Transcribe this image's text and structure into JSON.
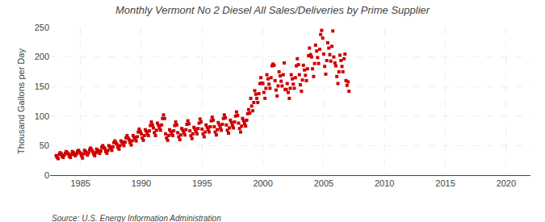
{
  "chart_data": {
    "type": "scatter",
    "title": "Monthly Vermont No 2 Diesel All Sales/Deliveries by Prime Supplier",
    "ylabel": "Thousand Gallons per Day",
    "annotations": [
      "Source: U.S. Energy Information Administration"
    ],
    "color": "#cc0000",
    "marker": "square",
    "grid": true,
    "xlim": [
      1982.5,
      2022
    ],
    "ylim": [
      0,
      250
    ],
    "xticks": [
      1985,
      1990,
      1995,
      2000,
      2005,
      2010,
      2015,
      2020
    ],
    "yticks": [
      0,
      50,
      100,
      150,
      200,
      250
    ],
    "x": [
      1983.0,
      1983.08,
      1983.17,
      1983.25,
      1983.33,
      1983.42,
      1983.5,
      1983.58,
      1983.67,
      1983.75,
      1983.83,
      1983.92,
      1984.0,
      1984.08,
      1984.17,
      1984.25,
      1984.33,
      1984.42,
      1984.5,
      1984.58,
      1984.67,
      1984.75,
      1984.83,
      1984.92,
      1985.0,
      1985.08,
      1985.17,
      1985.25,
      1985.33,
      1985.42,
      1985.5,
      1985.58,
      1985.67,
      1985.75,
      1985.83,
      1985.92,
      1986.0,
      1986.08,
      1986.17,
      1986.25,
      1986.33,
      1986.42,
      1986.5,
      1986.58,
      1986.67,
      1986.75,
      1986.83,
      1986.92,
      1987.0,
      1987.08,
      1987.17,
      1987.25,
      1987.33,
      1987.42,
      1987.5,
      1987.58,
      1987.67,
      1987.75,
      1987.83,
      1987.92,
      1988.0,
      1988.08,
      1988.17,
      1988.25,
      1988.33,
      1988.42,
      1988.5,
      1988.58,
      1988.67,
      1988.75,
      1988.83,
      1988.92,
      1989.0,
      1989.08,
      1989.17,
      1989.25,
      1989.33,
      1989.42,
      1989.5,
      1989.58,
      1989.67,
      1989.75,
      1989.83,
      1989.92,
      1990.0,
      1990.08,
      1990.17,
      1990.25,
      1990.33,
      1990.42,
      1990.5,
      1990.58,
      1990.67,
      1990.75,
      1990.83,
      1990.92,
      1991.0,
      1991.08,
      1991.17,
      1991.25,
      1991.33,
      1991.42,
      1991.5,
      1991.58,
      1991.67,
      1991.75,
      1991.83,
      1991.92,
      1992.0,
      1992.08,
      1992.17,
      1992.25,
      1992.33,
      1992.42,
      1992.5,
      1992.58,
      1992.67,
      1992.75,
      1992.83,
      1992.92,
      1993.0,
      1993.08,
      1993.17,
      1993.25,
      1993.33,
      1993.42,
      1993.5,
      1993.58,
      1993.67,
      1993.75,
      1993.83,
      1993.92,
      1994.0,
      1994.08,
      1994.17,
      1994.25,
      1994.33,
      1994.42,
      1994.5,
      1994.58,
      1994.67,
      1994.75,
      1994.83,
      1994.92,
      1995.0,
      1995.08,
      1995.17,
      1995.25,
      1995.33,
      1995.42,
      1995.5,
      1995.58,
      1995.67,
      1995.75,
      1995.83,
      1995.92,
      1996.0,
      1996.08,
      1996.17,
      1996.25,
      1996.33,
      1996.42,
      1996.5,
      1996.58,
      1996.67,
      1996.75,
      1996.83,
      1996.92,
      1997.0,
      1997.08,
      1997.17,
      1997.25,
      1997.33,
      1997.42,
      1997.5,
      1997.58,
      1997.67,
      1997.75,
      1997.83,
      1997.92,
      1998.0,
      1998.08,
      1998.17,
      1998.25,
      1998.33,
      1998.42,
      1998.5,
      1998.58,
      1998.67,
      1998.75,
      1998.83,
      1998.92,
      1999.0,
      1999.08,
      1999.17,
      1999.25,
      1999.33,
      1999.42,
      1999.5,
      1999.58,
      1999.67,
      1999.75,
      1999.83,
      1999.92,
      2000.0,
      2000.08,
      2000.17,
      2000.25,
      2000.33,
      2000.42,
      2000.5,
      2000.58,
      2000.67,
      2000.75,
      2000.83,
      2000.92,
      2001.0,
      2001.08,
      2001.17,
      2001.25,
      2001.33,
      2001.42,
      2001.5,
      2001.58,
      2001.67,
      2001.75,
      2001.83,
      2001.92,
      2002.0,
      2002.08,
      2002.17,
      2002.25,
      2002.33,
      2002.42,
      2002.5,
      2002.58,
      2002.67,
      2002.75,
      2002.83,
      2002.92,
      2003.0,
      2003.08,
      2003.17,
      2003.25,
      2003.33,
      2003.42,
      2003.5,
      2003.58,
      2003.67,
      2003.75,
      2003.83,
      2003.92,
      2004.0,
      2004.08,
      2004.17,
      2004.25,
      2004.33,
      2004.42,
      2004.5,
      2004.58,
      2004.67,
      2004.75,
      2004.83,
      2004.92,
      2005.0,
      2005.08,
      2005.17,
      2005.25,
      2005.33,
      2005.42,
      2005.5,
      2005.58,
      2005.67,
      2005.75,
      2005.83,
      2005.92,
      2006.0,
      2006.08,
      2006.17,
      2006.25,
      2006.33,
      2006.42,
      2006.5,
      2006.58,
      2006.67,
      2006.75,
      2006.83,
      2006.92,
      2007.0,
      2007.08
    ],
    "values": [
      33,
      30,
      28,
      35,
      38,
      36,
      32,
      30,
      34,
      37,
      40,
      38,
      36,
      32,
      30,
      35,
      40,
      38,
      35,
      33,
      36,
      40,
      42,
      39,
      37,
      33,
      29,
      36,
      42,
      40,
      37,
      34,
      38,
      43,
      46,
      43,
      40,
      36,
      33,
      38,
      44,
      42,
      39,
      37,
      41,
      47,
      50,
      47,
      45,
      40,
      37,
      42,
      50,
      48,
      45,
      42,
      48,
      55,
      58,
      55,
      52,
      47,
      44,
      50,
      58,
      56,
      53,
      50,
      56,
      63,
      67,
      63,
      60,
      55,
      51,
      58,
      67,
      64,
      61,
      58,
      65,
      73,
      78,
      74,
      70,
      63,
      59,
      67,
      77,
      74,
      70,
      67,
      75,
      84,
      90,
      85,
      80,
      72,
      67,
      76,
      88,
      84,
      80,
      76,
      85,
      96,
      102,
      96,
      70,
      63,
      59,
      67,
      77,
      74,
      70,
      67,
      75,
      84,
      90,
      85,
      72,
      65,
      60,
      68,
      79,
      76,
      72,
      68,
      77,
      86,
      92,
      87,
      75,
      67,
      62,
      70,
      81,
      78,
      74,
      70,
      79,
      88,
      95,
      90,
      78,
      70,
      65,
      73,
      85,
      81,
      77,
      73,
      82,
      92,
      98,
      93,
      82,
      73,
      68,
      77,
      89,
      85,
      80,
      76,
      86,
      96,
      102,
      97,
      85,
      76,
      71,
      80,
      93,
      89,
      84,
      80,
      90,
      100,
      107,
      101,
      88,
      79,
      73,
      83,
      96,
      92,
      87,
      83,
      93,
      104,
      111,
      105,
      130,
      117,
      109,
      123,
      143,
      137,
      130,
      123,
      138,
      155,
      165,
      156,
      155,
      140,
      130,
      147,
      170,
      163,
      154,
      147,
      165,
      185,
      188,
      186,
      160,
      144,
      134,
      151,
      175,
      168,
      159,
      151,
      170,
      190,
      145,
      145,
      155,
      140,
      130,
      147,
      170,
      163,
      154,
      147,
      165,
      185,
      197,
      187,
      170,
      153,
      142,
      161,
      186,
      178,
      169,
      160,
      180,
      202,
      215,
      204,
      200,
      180,
      167,
      189,
      220,
      210,
      199,
      189,
      213,
      238,
      245,
      232,
      205,
      184,
      171,
      194,
      224,
      215,
      204,
      193,
      218,
      244,
      200,
      190,
      185,
      167,
      155,
      175,
      203,
      194,
      184,
      175,
      197,
      205,
      160,
      152,
      158,
      142
    ]
  }
}
